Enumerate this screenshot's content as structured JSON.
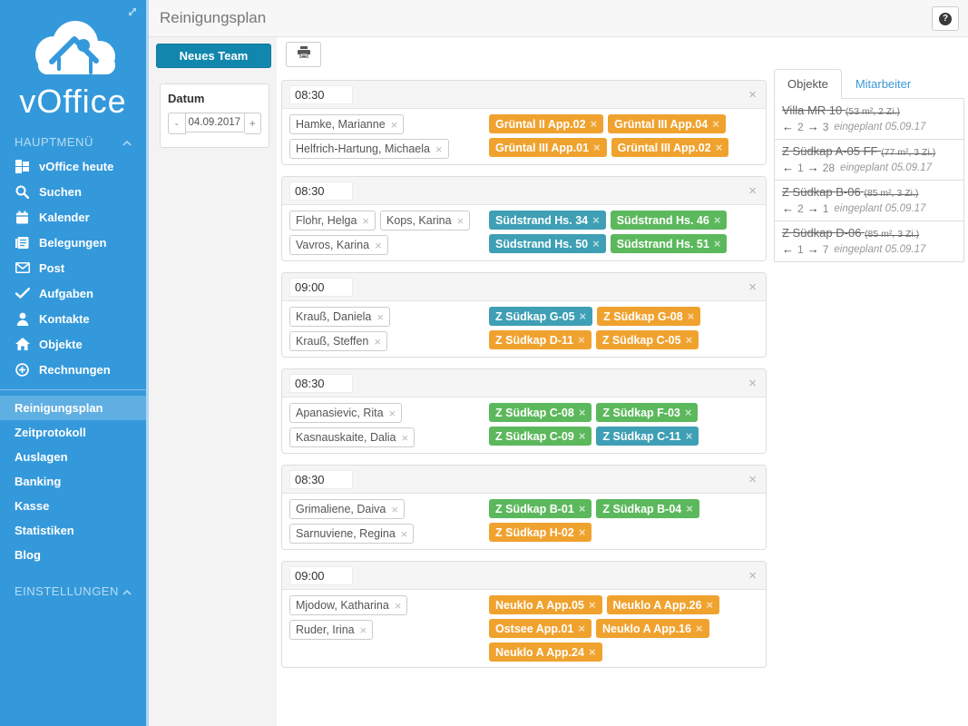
{
  "colors": {
    "sidebar": "#3499db",
    "accent": "#1287ad",
    "orange": "#f0a22f",
    "green": "#5cb85c",
    "teal": "#3e9fb5"
  },
  "sidebar": {
    "logo_text": "vOffice",
    "sections": {
      "main_label": "HAUPTMENÜ",
      "settings_label": "EINSTELLUNGEN"
    },
    "main_items": [
      {
        "icon": "grid-icon",
        "label": "vOffice heute"
      },
      {
        "icon": "search-icon",
        "label": "Suchen"
      },
      {
        "icon": "calendar-icon",
        "label": "Kalender"
      },
      {
        "icon": "book-icon",
        "label": "Belegungen"
      },
      {
        "icon": "mail-icon",
        "label": "Post"
      },
      {
        "icon": "check-icon",
        "label": "Aufgaben"
      },
      {
        "icon": "person-icon",
        "label": "Kontakte"
      },
      {
        "icon": "home-icon",
        "label": "Objekte"
      },
      {
        "icon": "plus-circle-icon",
        "label": "Rechnungen"
      }
    ],
    "secondary_items": [
      {
        "label": "Reinigungsplan",
        "active": true
      },
      {
        "label": "Zeitprotokoll",
        "active": false
      },
      {
        "label": "Auslagen",
        "active": false
      },
      {
        "label": "Banking",
        "active": false
      },
      {
        "label": "Kasse",
        "active": false
      },
      {
        "label": "Statistiken",
        "active": false
      },
      {
        "label": "Blog",
        "active": false
      }
    ]
  },
  "header": {
    "title": "Reinigungsplan",
    "help_glyph": "?"
  },
  "toolbar": {
    "new_team_label": "Neues Team",
    "datum_label": "Datum",
    "minus_label": "-",
    "plus_label": "+",
    "date_value": "04.09.2017"
  },
  "teams": [
    {
      "time": "08:30",
      "members": [
        "Hamke, Marianne",
        "Helfrich-Hartung, Michaela"
      ],
      "objects": [
        {
          "label": "Grüntal II App.02",
          "color": "orange"
        },
        {
          "label": "Grüntal III App.04",
          "color": "orange"
        },
        {
          "label": "Grüntal III App.01",
          "color": "orange"
        },
        {
          "label": "Grüntal III App.02",
          "color": "orange"
        }
      ]
    },
    {
      "time": "08:30",
      "members": [
        "Flohr, Helga",
        "Kops, Karina",
        "Vavros, Karina"
      ],
      "objects": [
        {
          "label": "Südstrand Hs. 34",
          "color": "teal"
        },
        {
          "label": "Südstrand Hs. 46",
          "color": "green"
        },
        {
          "label": "Südstrand Hs. 50",
          "color": "teal"
        },
        {
          "label": "Südstrand Hs. 51",
          "color": "green"
        }
      ]
    },
    {
      "time": "09:00",
      "members": [
        "Krauß, Daniela",
        "Krauß, Steffen"
      ],
      "objects": [
        {
          "label": "Z Südkap G-05",
          "color": "teal"
        },
        {
          "label": "Z Südkap G-08",
          "color": "orange"
        },
        {
          "label": "Z Südkap D-11",
          "color": "orange"
        },
        {
          "label": "Z Südkap C-05",
          "color": "orange"
        }
      ]
    },
    {
      "time": "08:30",
      "members": [
        "Apanasievic, Rita",
        "Kasnauskaite, Dalia"
      ],
      "objects": [
        {
          "label": "Z Südkap C-08",
          "color": "green"
        },
        {
          "label": "Z Südkap F-03",
          "color": "green"
        },
        {
          "label": "Z Südkap C-09",
          "color": "green"
        },
        {
          "label": "Z Südkap C-11",
          "color": "teal"
        }
      ]
    },
    {
      "time": "08:30",
      "members": [
        "Grimaliene, Daiva",
        "Sarnuviene, Regina"
      ],
      "objects": [
        {
          "label": "Z Südkap B-01",
          "color": "green"
        },
        {
          "label": "Z Südkap B-04",
          "color": "green"
        },
        {
          "label": "Z Südkap H-02",
          "color": "orange"
        }
      ]
    },
    {
      "time": "09:00",
      "members": [
        "Mjodow, Katharina",
        "Ruder, Irina"
      ],
      "objects": [
        {
          "label": "Neuklo A App.05",
          "color": "orange"
        },
        {
          "label": "Neuklo A App.26",
          "color": "orange"
        },
        {
          "label": "Ostsee App.01",
          "color": "orange"
        },
        {
          "label": "Neuklo A App.16",
          "color": "orange"
        },
        {
          "label": "Neuklo A App.24",
          "color": "orange"
        }
      ]
    }
  ],
  "panel": {
    "tabs": [
      {
        "label": "Objekte",
        "active": true
      },
      {
        "label": "Mitarbeiter",
        "active": false
      }
    ],
    "items": [
      {
        "name": "Villa MR 10",
        "size": "(53 m², 2 Zi.)",
        "left_count": "2",
        "right_count": "3",
        "note": "eingeplant 05.09.17"
      },
      {
        "name": "Z Südkap A-05 FF",
        "size": "(77 m², 3 Zi.)",
        "left_count": "1",
        "right_count": "28",
        "note": "eingeplant 05.09.17"
      },
      {
        "name": "Z Südkap B-06",
        "size": "(85 m², 3 Zi.)",
        "left_count": "2",
        "right_count": "1",
        "note": "eingeplant 05.09.17"
      },
      {
        "name": "Z Südkap D-06",
        "size": "(85 m², 3 Zi.)",
        "left_count": "1",
        "right_count": "7",
        "note": "eingeplant 05.09.17"
      }
    ]
  }
}
